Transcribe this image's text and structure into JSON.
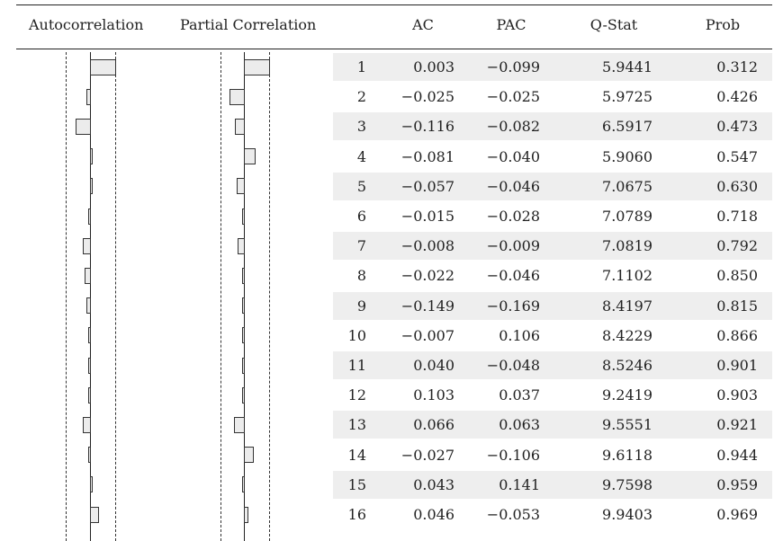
{
  "headers": {
    "autocorrelation": "Autocorrelation",
    "partial_correlation": "Partial Correlation",
    "ac": "AC",
    "pac": "PAC",
    "qstat": "Q-Stat",
    "prob": "Prob"
  },
  "colors": {
    "bar_fill": "#ececec",
    "row_shade": "#eeeeee",
    "rule": "#222222"
  },
  "rows": [
    {
      "lag": "1",
      "ac": "0.003",
      "pac": "−0.099",
      "q": "5.9441",
      "prob": "0.312"
    },
    {
      "lag": "2",
      "ac": "−0.025",
      "pac": "−0.025",
      "q": "5.9725",
      "prob": "0.426"
    },
    {
      "lag": "3",
      "ac": "−0.116",
      "pac": "−0.082",
      "q": "6.5917",
      "prob": "0.473"
    },
    {
      "lag": "4",
      "ac": "−0.081",
      "pac": "−0.040",
      "q": "5.9060",
      "prob": "0.547"
    },
    {
      "lag": "5",
      "ac": "−0.057",
      "pac": "−0.046",
      "q": "7.0675",
      "prob": "0.630"
    },
    {
      "lag": "6",
      "ac": "−0.015",
      "pac": "−0.028",
      "q": "7.0789",
      "prob": "0.718"
    },
    {
      "lag": "7",
      "ac": "−0.008",
      "pac": "−0.009",
      "q": "7.0819",
      "prob": "0.792"
    },
    {
      "lag": "8",
      "ac": "−0.022",
      "pac": "−0.046",
      "q": "7.1102",
      "prob": "0.850"
    },
    {
      "lag": "9",
      "ac": "−0.149",
      "pac": "−0.169",
      "q": "8.4197",
      "prob": "0.815"
    },
    {
      "lag": "10",
      "ac": "−0.007",
      "pac": "0.106",
      "q": "8.4229",
      "prob": "0.866"
    },
    {
      "lag": "11",
      "ac": "0.040",
      "pac": "−0.048",
      "q": "8.5246",
      "prob": "0.901"
    },
    {
      "lag": "12",
      "ac": "0.103",
      "pac": "0.037",
      "q": "9.2419",
      "prob": "0.903"
    },
    {
      "lag": "13",
      "ac": "0.066",
      "pac": "0.063",
      "q": "9.5551",
      "prob": "0.921"
    },
    {
      "lag": "14",
      "ac": "−0.027",
      "pac": "−0.106",
      "q": "9.6118",
      "prob": "0.944"
    },
    {
      "lag": "15",
      "ac": "0.043",
      "pac": "0.141",
      "q": "9.7598",
      "prob": "0.959"
    },
    {
      "lag": "16",
      "ac": "0.046",
      "pac": "−0.053",
      "q": "9.9403",
      "prob": "0.969"
    }
  ],
  "correlogram": {
    "ac_bars": [
      0.3,
      -0.05,
      -0.18,
      0,
      0,
      -0.03,
      -0.1,
      -0.07,
      -0.05,
      -0.02,
      -0.01,
      -0.02,
      -0.1,
      -0.01,
      0.02,
      0.1
    ],
    "pac_bars": [
      0.3,
      -0.18,
      -0.12,
      0.14,
      -0.1,
      -0.02,
      -0.08,
      -0.02,
      -0.02,
      -0.02,
      -0.01,
      -0.02,
      -0.13,
      0.12,
      -0.02,
      0.05
    ]
  }
}
